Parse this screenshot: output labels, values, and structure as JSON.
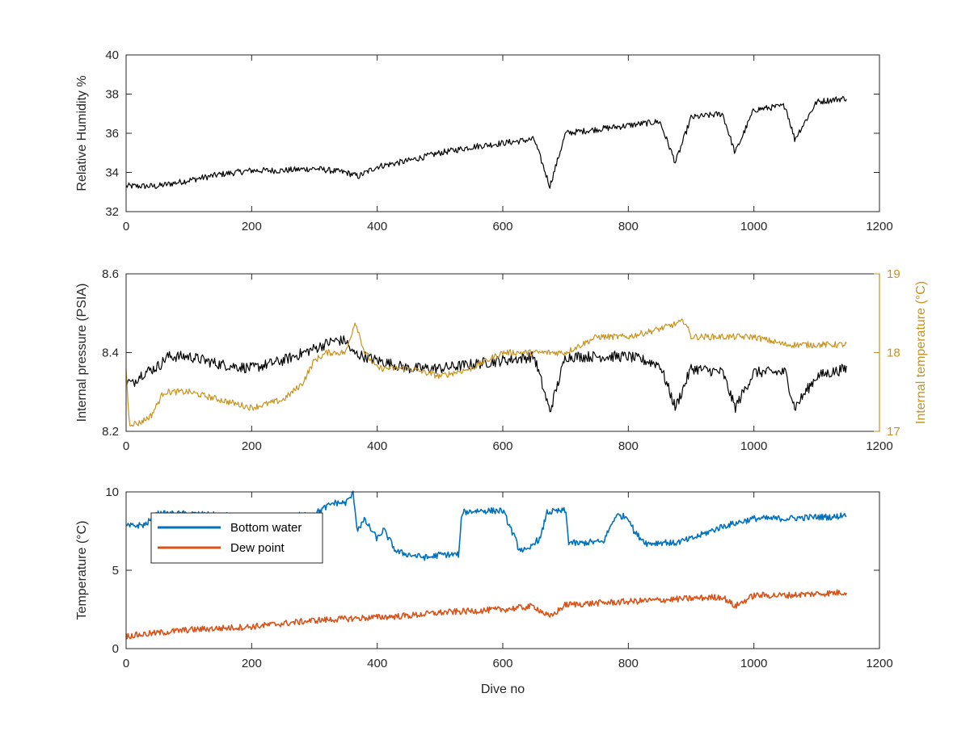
{
  "chart_data": [
    {
      "type": "line",
      "xlabel": "",
      "ylabel": "Relative Humidity %",
      "xlim": [
        0,
        1200
      ],
      "ylim": [
        32,
        40
      ],
      "xticks": [
        "0",
        "200",
        "400",
        "600",
        "800",
        "1000",
        "1200"
      ],
      "yticks": [
        "32",
        "34",
        "36",
        "38",
        "40"
      ],
      "series": [
        {
          "color": "#000000",
          "x": [
            0,
            50,
            100,
            150,
            200,
            250,
            300,
            350,
            370,
            400,
            450,
            500,
            550,
            600,
            650,
            675,
            700,
            750,
            800,
            850,
            875,
            900,
            950,
            970,
            1000,
            1050,
            1065,
            1100,
            1148
          ],
          "y": [
            33.3,
            33.3,
            33.6,
            33.9,
            34.1,
            34.1,
            34.2,
            34.0,
            33.8,
            34.3,
            34.6,
            35.0,
            35.3,
            35.5,
            35.7,
            33.3,
            36.0,
            36.2,
            36.4,
            36.6,
            34.5,
            36.8,
            37.0,
            35.0,
            37.2,
            37.4,
            35.7,
            37.6,
            37.8
          ]
        }
      ]
    },
    {
      "type": "line",
      "xlabel": "",
      "ylabel": "Internal pressure (PSIA)",
      "ylabel_right": "Internal temperature (°C)",
      "xlim": [
        0,
        1200
      ],
      "ylim": [
        8.2,
        8.6
      ],
      "ylim_right": [
        17,
        19
      ],
      "xticks": [
        "0",
        "200",
        "400",
        "600",
        "800",
        "1000",
        "1200"
      ],
      "yticks": [
        "8.2",
        "8.4",
        "8.6"
      ],
      "yticks_right": [
        "17",
        "18",
        "19"
      ],
      "series": [
        {
          "axis": "left",
          "color": "#000000",
          "x": [
            0,
            10,
            20,
            30,
            45,
            55,
            65,
            100,
            150,
            200,
            250,
            300,
            330,
            350,
            360,
            380,
            400,
            450,
            500,
            550,
            600,
            650,
            675,
            700,
            750,
            800,
            850,
            875,
            900,
            950,
            970,
            1000,
            1050,
            1065,
            1100,
            1148
          ],
          "y": [
            8.33,
            8.32,
            8.34,
            8.35,
            8.36,
            8.37,
            8.39,
            8.39,
            8.37,
            8.36,
            8.38,
            8.41,
            8.43,
            8.43,
            8.4,
            8.39,
            8.38,
            8.36,
            8.36,
            8.37,
            8.38,
            8.39,
            8.25,
            8.39,
            8.39,
            8.39,
            8.37,
            8.26,
            8.36,
            8.35,
            8.26,
            8.35,
            8.35,
            8.26,
            8.34,
            8.36
          ]
        },
        {
          "axis": "right",
          "color": "#C8921E",
          "x": [
            0,
            5,
            20,
            40,
            60,
            100,
            150,
            200,
            250,
            280,
            300,
            320,
            350,
            365,
            380,
            400,
            450,
            500,
            550,
            600,
            650,
            700,
            750,
            800,
            850,
            890,
            900,
            950,
            1000,
            1050,
            1100,
            1140,
            1148
          ],
          "y": [
            17.8,
            17.1,
            17.1,
            17.2,
            17.5,
            17.5,
            17.4,
            17.3,
            17.4,
            17.6,
            17.9,
            18.0,
            18.0,
            18.4,
            18.0,
            17.8,
            17.8,
            17.7,
            17.8,
            18.0,
            18.0,
            18.0,
            18.2,
            18.2,
            18.3,
            18.4,
            18.2,
            18.2,
            18.2,
            18.1,
            18.1,
            18.1,
            18.1
          ]
        }
      ]
    },
    {
      "type": "line",
      "xlabel": "Dive no",
      "ylabel": "Temperature (°C)",
      "xlim": [
        0,
        1200
      ],
      "ylim": [
        0,
        10
      ],
      "xticks": [
        "0",
        "200",
        "400",
        "600",
        "800",
        "1000",
        "1200"
      ],
      "yticks": [
        "0",
        "5",
        "10"
      ],
      "legend_position": "top-left",
      "series": [
        {
          "name": "Bottom water",
          "color": "#0072BD",
          "x": [
            0,
            30,
            50,
            100,
            150,
            200,
            250,
            300,
            330,
            350,
            362,
            368,
            380,
            400,
            410,
            430,
            450,
            480,
            500,
            530,
            535,
            560,
            600,
            620,
            625,
            640,
            650,
            660,
            670,
            700,
            705,
            720,
            740,
            760,
            780,
            800,
            810,
            830,
            860,
            870,
            900,
            950,
            1000,
            1050,
            1100,
            1130,
            1148
          ],
          "y": [
            7.8,
            7.9,
            8.6,
            8.6,
            8.5,
            8.4,
            8.4,
            8.6,
            9.3,
            9.3,
            9.9,
            7.6,
            8.2,
            7.0,
            7.6,
            6.2,
            6.0,
            5.8,
            6.0,
            6.0,
            8.7,
            8.8,
            8.8,
            7.0,
            6.4,
            6.2,
            6.8,
            7.0,
            8.7,
            8.8,
            6.8,
            6.7,
            6.8,
            6.8,
            8.5,
            8.4,
            7.4,
            6.7,
            6.8,
            6.7,
            7.0,
            7.8,
            8.3,
            8.3,
            8.4,
            8.4,
            8.6
          ]
        },
        {
          "name": "Dew point",
          "color": "#D95319",
          "x": [
            0,
            50,
            100,
            150,
            200,
            250,
            300,
            350,
            400,
            450,
            500,
            550,
            600,
            650,
            675,
            700,
            750,
            800,
            850,
            900,
            950,
            970,
            1000,
            1050,
            1100,
            1148
          ],
          "y": [
            0.8,
            1.0,
            1.2,
            1.3,
            1.4,
            1.6,
            1.8,
            1.9,
            2.0,
            2.1,
            2.3,
            2.4,
            2.5,
            2.7,
            2.0,
            2.8,
            2.9,
            3.0,
            3.1,
            3.2,
            3.3,
            2.7,
            3.4,
            3.4,
            3.5,
            3.6
          ]
        }
      ]
    }
  ]
}
